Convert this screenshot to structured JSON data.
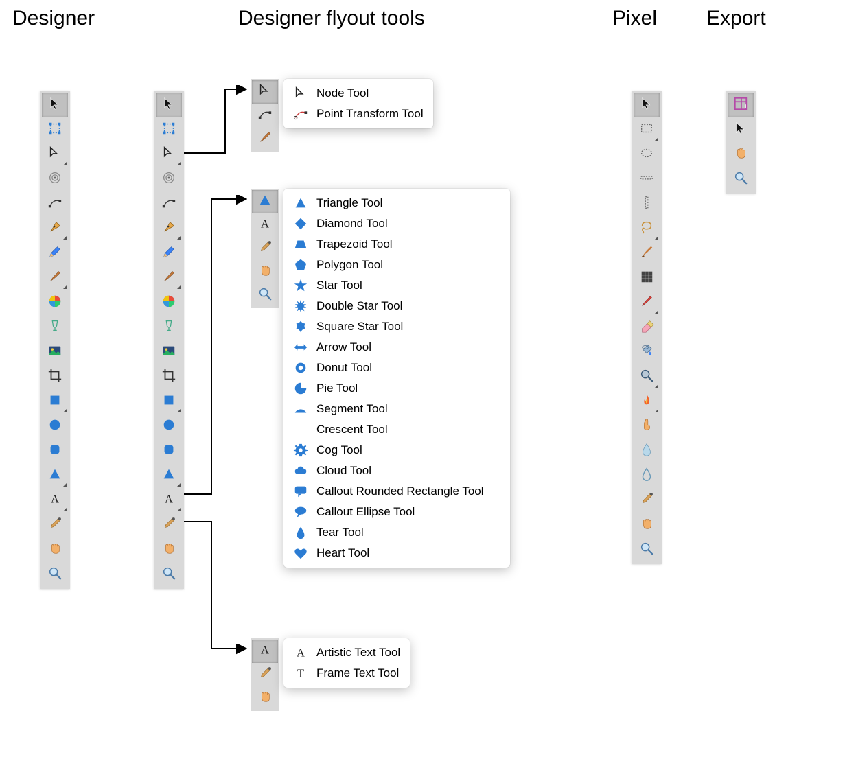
{
  "headers": {
    "designer": "Designer",
    "flyout": "Designer flyout tools",
    "pixel": "Pixel",
    "export": "Export"
  },
  "colors": {
    "toolbar_bg": "#d9d9d9",
    "popup_bg": "#ffffff",
    "shape_blue": "#2b7cd3",
    "shape_blue_dark": "#1f5fa8",
    "text": "#000000",
    "selected_bg": "#c0c0c0"
  },
  "designer_tools": [
    {
      "name": "move-tool",
      "icon": "cursor",
      "selected": true
    },
    {
      "name": "artboard-tool",
      "icon": "artboard"
    },
    {
      "name": "node-tool",
      "icon": "node-cursor",
      "flyout": true
    },
    {
      "name": "corner-tool",
      "icon": "target"
    },
    {
      "name": "point-transform-tool",
      "icon": "point-transform"
    },
    {
      "name": "pen-tool",
      "icon": "pen-nib",
      "flyout": true
    },
    {
      "name": "pencil-tool",
      "icon": "pencil"
    },
    {
      "name": "vector-brush-tool",
      "icon": "brush",
      "flyout": true
    },
    {
      "name": "fill-tool",
      "icon": "color-wheel"
    },
    {
      "name": "transparency-tool",
      "icon": "wine-glass"
    },
    {
      "name": "place-image-tool",
      "icon": "picture"
    },
    {
      "name": "crop-tool",
      "icon": "crop"
    },
    {
      "name": "rectangle-tool",
      "icon": "square",
      "flyout": true
    },
    {
      "name": "ellipse-tool",
      "icon": "circle"
    },
    {
      "name": "rounded-rectangle-tool",
      "icon": "rounded-square"
    },
    {
      "name": "triangle-tool",
      "icon": "triangle",
      "flyout": true
    },
    {
      "name": "artistic-text-tool",
      "icon": "text-A",
      "flyout": true
    },
    {
      "name": "color-picker-tool",
      "icon": "eyedropper"
    },
    {
      "name": "view-tool-hand",
      "icon": "hand"
    },
    {
      "name": "zoom-tool",
      "icon": "magnifier"
    }
  ],
  "node_flyout": {
    "mini": [
      "node-cursor",
      "point-transform",
      "brush"
    ],
    "items": [
      {
        "icon": "node-cursor",
        "label": "Node Tool"
      },
      {
        "icon": "point-transform-red",
        "label": "Point Transform Tool"
      }
    ]
  },
  "shape_flyout": {
    "mini": [
      "triangle",
      "text-A",
      "eyedropper",
      "hand",
      "magnifier"
    ],
    "items": [
      {
        "icon": "triangle",
        "label": "Triangle Tool"
      },
      {
        "icon": "diamond",
        "label": "Diamond Tool"
      },
      {
        "icon": "trapezoid",
        "label": "Trapezoid Tool"
      },
      {
        "icon": "pentagon",
        "label": "Polygon Tool"
      },
      {
        "icon": "star5",
        "label": "Star Tool"
      },
      {
        "icon": "starburst",
        "label": "Double Star Tool"
      },
      {
        "icon": "puffy-star",
        "label": "Square Star Tool"
      },
      {
        "icon": "arrow-lr",
        "label": "Arrow Tool"
      },
      {
        "icon": "donut",
        "label": "Donut Tool"
      },
      {
        "icon": "pie",
        "label": "Pie Tool"
      },
      {
        "icon": "segment",
        "label": "Segment Tool"
      },
      {
        "icon": "crescent",
        "label": "Crescent Tool"
      },
      {
        "icon": "cog",
        "label": "Cog Tool"
      },
      {
        "icon": "cloud",
        "label": "Cloud Tool"
      },
      {
        "icon": "callout-rect",
        "label": "Callout Rounded Rectangle Tool"
      },
      {
        "icon": "callout-ellipse",
        "label": "Callout Ellipse Tool"
      },
      {
        "icon": "tear",
        "label": "Tear Tool"
      },
      {
        "icon": "heart",
        "label": "Heart Tool"
      }
    ]
  },
  "text_flyout": {
    "mini": [
      "text-A",
      "eyedropper",
      "hand"
    ],
    "items": [
      {
        "icon": "text-A-serif",
        "label": "Artistic Text Tool"
      },
      {
        "icon": "text-T",
        "label": "Frame Text Tool"
      }
    ]
  },
  "pixel_tools": [
    {
      "name": "move-tool",
      "icon": "cursor",
      "selected": true
    },
    {
      "name": "rectangular-marquee-tool",
      "icon": "marquee-rect",
      "flyout": true
    },
    {
      "name": "elliptical-marquee-tool",
      "icon": "marquee-ellipse"
    },
    {
      "name": "row-marquee-tool",
      "icon": "marquee-row"
    },
    {
      "name": "column-marquee-tool",
      "icon": "marquee-col"
    },
    {
      "name": "freehand-selection-tool",
      "icon": "lasso",
      "flyout": true
    },
    {
      "name": "selection-brush-tool",
      "icon": "paint-brush"
    },
    {
      "name": "pixel-tool",
      "icon": "grid3x3"
    },
    {
      "name": "paint-brush-tool",
      "icon": "red-brush",
      "flyout": true
    },
    {
      "name": "erase-brush-tool",
      "icon": "eraser"
    },
    {
      "name": "flood-fill-tool",
      "icon": "bucket"
    },
    {
      "name": "smudge-tool",
      "icon": "magnifier-dark",
      "flyout": true
    },
    {
      "name": "burn-tool",
      "icon": "flame",
      "flyout": true
    },
    {
      "name": "clone-tool",
      "icon": "finger"
    },
    {
      "name": "drop-tool",
      "icon": "water-drop"
    },
    {
      "name": "sharpen-tool",
      "icon": "drop-outline"
    },
    {
      "name": "color-picker-tool-pixel",
      "icon": "eyedropper"
    },
    {
      "name": "view-tool-hand-pixel",
      "icon": "hand"
    },
    {
      "name": "zoom-tool-pixel",
      "icon": "magnifier"
    }
  ],
  "export_tools": [
    {
      "name": "slice-tool",
      "icon": "slice",
      "selected": true
    },
    {
      "name": "move-tool-export",
      "icon": "cursor"
    },
    {
      "name": "view-tool-hand-export",
      "icon": "hand"
    },
    {
      "name": "zoom-tool-export",
      "icon": "magnifier"
    }
  ]
}
